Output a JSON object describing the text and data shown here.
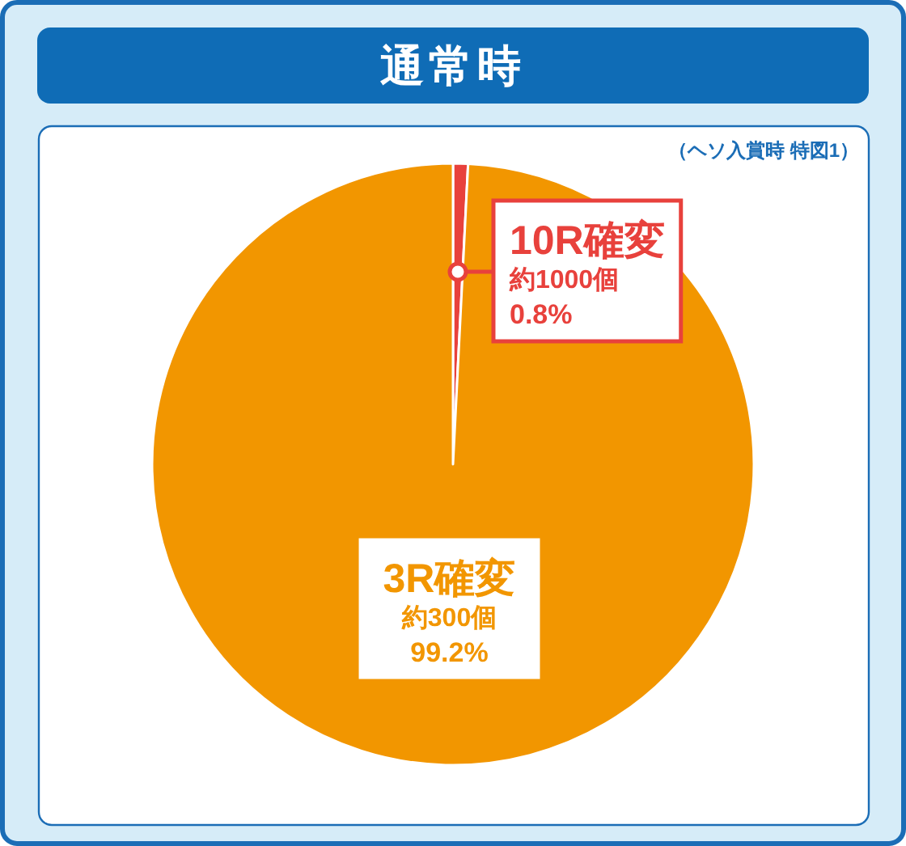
{
  "chart_data": {
    "type": "pie",
    "title": "通常時",
    "subtitle": "（ヘソ入賞時 特図1）",
    "categories": [
      "10R確変",
      "3R確変"
    ],
    "values": [
      0.8,
      99.2
    ],
    "colors": [
      "#e8413c",
      "#f29600"
    ],
    "value_labels": [
      "0.8%",
      "99.2%"
    ],
    "annotations": [
      {
        "text": "約1000個",
        "x": "10R確変"
      },
      {
        "text": "約300個",
        "x": "3R確変"
      }
    ]
  }
}
